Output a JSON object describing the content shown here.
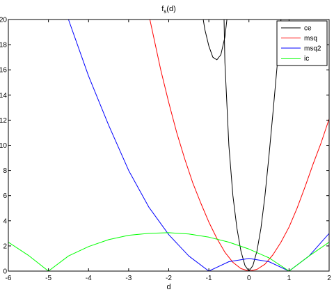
{
  "chart_data": {
    "type": "line",
    "title": "f",
    "title_sub": "s",
    "title_tail": "(d)",
    "xlabel": "d",
    "ylabel": "",
    "xlim": [
      -6,
      2
    ],
    "ylim": [
      0,
      20
    ],
    "xticks": [
      -6,
      -5,
      -4,
      -3,
      -2,
      -1,
      0,
      1,
      2
    ],
    "yticks": [
      0,
      2,
      4,
      6,
      8,
      10,
      12,
      14,
      16,
      18,
      20
    ],
    "grid": false,
    "legend_position": "top-right",
    "series": [
      {
        "name": "ce",
        "color": "#000000",
        "segments": [
          [
            [
              -1.14,
              20
            ],
            [
              -1.1,
              19.2
            ],
            [
              -1.0,
              17.9
            ],
            [
              -0.9,
              17.0
            ],
            [
              -0.8,
              16.8
            ],
            [
              -0.7,
              17.2
            ],
            [
              -0.6,
              18.6
            ],
            [
              -0.55,
              20
            ]
          ],
          [
            [
              -0.62,
              20
            ],
            [
              -0.6,
              16.6
            ],
            [
              -0.5,
              10.0
            ],
            [
              -0.4,
              6.0
            ],
            [
              -0.3,
              3.4
            ],
            [
              -0.2,
              1.6
            ],
            [
              -0.1,
              0.45
            ],
            [
              0,
              0
            ],
            [
              0.1,
              0.45
            ],
            [
              0.2,
              1.6
            ],
            [
              0.3,
              3.4
            ],
            [
              0.4,
              6.0
            ],
            [
              0.5,
              9.2
            ],
            [
              0.6,
              12.6
            ],
            [
              0.7,
              16.2
            ],
            [
              0.78,
              19.2
            ],
            [
              0.8,
              20
            ]
          ]
        ]
      },
      {
        "name": "msq",
        "color": "#ff0000",
        "segments": [
          [
            [
              -2.47,
              20
            ],
            [
              -2.2,
              16.0
            ],
            [
              -2.0,
              13.4
            ],
            [
              -1.8,
              11.0
            ],
            [
              -1.6,
              8.9
            ],
            [
              -1.4,
              7.0
            ],
            [
              -1.2,
              5.4
            ],
            [
              -1.0,
              3.9
            ],
            [
              -0.8,
              2.6
            ],
            [
              -0.6,
              1.5
            ],
            [
              -0.4,
              0.7
            ],
            [
              -0.2,
              0.2
            ],
            [
              0,
              0
            ],
            [
              0.2,
              0.14
            ],
            [
              0.4,
              0.55
            ],
            [
              0.6,
              1.3
            ],
            [
              0.8,
              2.3
            ],
            [
              1.0,
              3.5
            ],
            [
              1.2,
              5.0
            ],
            [
              1.4,
              6.7
            ],
            [
              1.6,
              8.5
            ],
            [
              1.8,
              10.2
            ],
            [
              2.0,
              12.1
            ]
          ]
        ]
      },
      {
        "name": "msq2",
        "color": "#0000ff",
        "segments": [
          [
            [
              -4.5,
              20
            ],
            [
              -4.0,
              15.5
            ],
            [
              -3.5,
              11.6
            ],
            [
              -3.0,
              8.0
            ],
            [
              -2.5,
              5.1
            ],
            [
              -2.0,
              2.9
            ],
            [
              -1.5,
              1.2
            ],
            [
              -1.0,
              0
            ],
            [
              -0.5,
              0.75
            ],
            [
              0,
              1.0
            ],
            [
              0.5,
              0.75
            ],
            [
              1.0,
              0
            ],
            [
              1.5,
              1.2
            ],
            [
              2.0,
              3.0
            ]
          ]
        ]
      },
      {
        "name": "ic",
        "color": "#00ff00",
        "segments": [
          [
            [
              -6.0,
              2.3
            ],
            [
              -5.5,
              1.25
            ],
            [
              -5.0,
              0
            ],
            [
              -4.5,
              1.2
            ],
            [
              -4.0,
              1.95
            ],
            [
              -3.5,
              2.5
            ],
            [
              -3.0,
              2.85
            ],
            [
              -2.5,
              3.0
            ],
            [
              -2.0,
              3.05
            ],
            [
              -1.5,
              2.95
            ],
            [
              -1.0,
              2.7
            ],
            [
              -0.5,
              2.3
            ],
            [
              0,
              1.75
            ],
            [
              0.5,
              1.05
            ],
            [
              1.0,
              0
            ],
            [
              1.5,
              1.2
            ],
            [
              2.0,
              2.3
            ]
          ]
        ]
      }
    ]
  }
}
